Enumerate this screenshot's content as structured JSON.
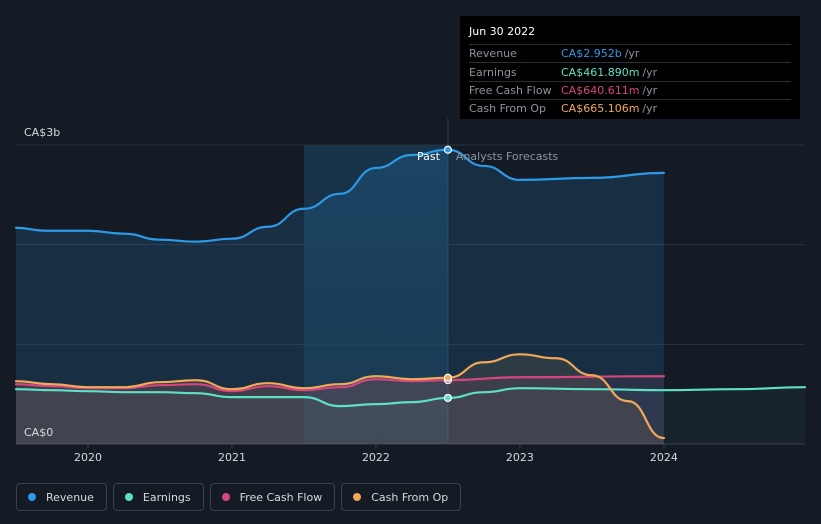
{
  "chart_data": {
    "type": "line",
    "y_ticks": {
      "top": "CA$3b",
      "bottom": "CA$0"
    },
    "ylim": [
      0,
      3.0
    ],
    "x_ticks": [
      "2020",
      "2021",
      "2022",
      "2023",
      "2024"
    ],
    "xlim": [
      2019.5,
      2024.98
    ],
    "past_label": "Past",
    "forecast_label": "Analysts Forecasts",
    "past_end": 2022.5,
    "highlight_start": 2021.5,
    "forecast_end": 2024.0,
    "series": [
      {
        "name": "Revenue",
        "color": "#2d9ae6",
        "points": [
          [
            2019.5,
            2.17
          ],
          [
            2019.7,
            2.14
          ],
          [
            2020.0,
            2.14
          ],
          [
            2020.25,
            2.11
          ],
          [
            2020.5,
            2.05
          ],
          [
            2020.75,
            2.03
          ],
          [
            2021.0,
            2.06
          ],
          [
            2021.25,
            2.18
          ],
          [
            2021.5,
            2.36
          ],
          [
            2021.75,
            2.51
          ],
          [
            2022.0,
            2.77
          ],
          [
            2022.25,
            2.9
          ],
          [
            2022.5,
            2.952
          ],
          [
            2022.75,
            2.79
          ],
          [
            2023.0,
            2.65
          ],
          [
            2023.5,
            2.67
          ],
          [
            2024.0,
            2.72
          ]
        ]
      },
      {
        "name": "Earnings",
        "color": "#5ee0c8",
        "points": [
          [
            2019.5,
            0.55
          ],
          [
            2019.75,
            0.54
          ],
          [
            2020.0,
            0.53
          ],
          [
            2020.25,
            0.52
          ],
          [
            2020.5,
            0.52
          ],
          [
            2020.75,
            0.51
          ],
          [
            2021.0,
            0.47
          ],
          [
            2021.25,
            0.47
          ],
          [
            2021.5,
            0.47
          ],
          [
            2021.75,
            0.38
          ],
          [
            2022.0,
            0.4
          ],
          [
            2022.25,
            0.42
          ],
          [
            2022.5,
            0.462
          ],
          [
            2022.75,
            0.52
          ],
          [
            2023.0,
            0.56
          ],
          [
            2023.5,
            0.55
          ],
          [
            2024.0,
            0.54
          ],
          [
            2024.5,
            0.55
          ],
          [
            2024.98,
            0.57
          ]
        ]
      },
      {
        "name": "Free Cash Flow",
        "color": "#d4477e",
        "points": [
          [
            2019.5,
            0.6
          ],
          [
            2019.75,
            0.58
          ],
          [
            2020.0,
            0.56
          ],
          [
            2020.25,
            0.56
          ],
          [
            2020.5,
            0.59
          ],
          [
            2020.75,
            0.6
          ],
          [
            2021.0,
            0.53
          ],
          [
            2021.25,
            0.58
          ],
          [
            2021.5,
            0.54
          ],
          [
            2021.75,
            0.57
          ],
          [
            2022.0,
            0.65
          ],
          [
            2022.25,
            0.63
          ],
          [
            2022.5,
            0.641
          ],
          [
            2023.0,
            0.67
          ],
          [
            2024.0,
            0.68
          ]
        ]
      },
      {
        "name": "Cash From Op",
        "color": "#f0a95a",
        "points": [
          [
            2019.5,
            0.63
          ],
          [
            2019.75,
            0.6
          ],
          [
            2020.0,
            0.57
          ],
          [
            2020.25,
            0.57
          ],
          [
            2020.5,
            0.62
          ],
          [
            2020.75,
            0.64
          ],
          [
            2021.0,
            0.55
          ],
          [
            2021.25,
            0.61
          ],
          [
            2021.5,
            0.56
          ],
          [
            2021.75,
            0.6
          ],
          [
            2022.0,
            0.68
          ],
          [
            2022.25,
            0.65
          ],
          [
            2022.5,
            0.665
          ],
          [
            2022.75,
            0.82
          ],
          [
            2023.0,
            0.9
          ],
          [
            2023.25,
            0.86
          ],
          [
            2023.5,
            0.69
          ],
          [
            2023.75,
            0.43
          ],
          [
            2024.0,
            0.06
          ]
        ]
      }
    ],
    "legend": [
      "Revenue",
      "Earnings",
      "Free Cash Flow",
      "Cash From Op"
    ],
    "legend_placement": "bottom-left",
    "grid": true
  },
  "tooltip": {
    "date": "Jun 30 2022",
    "rows": [
      {
        "label": "Revenue",
        "value": "CA$2.952b",
        "unit": "/yr",
        "color": "#2d9ae6"
      },
      {
        "label": "Earnings",
        "value": "CA$461.890m",
        "unit": "/yr",
        "color": "#5ee0c8"
      },
      {
        "label": "Free Cash Flow",
        "value": "CA$640.611m",
        "unit": "/yr",
        "color": "#d4477e"
      },
      {
        "label": "Cash From Op",
        "value": "CA$665.106m",
        "unit": "/yr",
        "color": "#f0a95a"
      }
    ]
  }
}
